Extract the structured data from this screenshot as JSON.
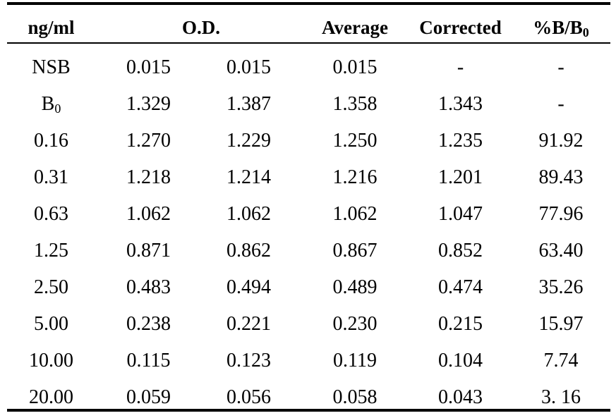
{
  "header": {
    "col0": "ng/ml",
    "col_od": "O.D.",
    "col3": "Average",
    "col4": "Corrected",
    "col5_main": "%B/B",
    "col5_sub": "0"
  },
  "rows": [
    {
      "c0_main": "NSB",
      "c0_sub": "",
      "c1": "0.015",
      "c2": "0.015",
      "c3": "0.015",
      "c4": "-",
      "c5": "-"
    },
    {
      "c0_main": "B",
      "c0_sub": "0",
      "c1": "1.329",
      "c2": "1.387",
      "c3": "1.358",
      "c4": "1.343",
      "c5": "-"
    },
    {
      "c0_main": "0.16",
      "c0_sub": "",
      "c1": "1.270",
      "c2": "1.229",
      "c3": "1.250",
      "c4": "1.235",
      "c5": "91.92"
    },
    {
      "c0_main": "0.31",
      "c0_sub": "",
      "c1": "1.218",
      "c2": "1.214",
      "c3": "1.216",
      "c4": "1.201",
      "c5": "89.43"
    },
    {
      "c0_main": "0.63",
      "c0_sub": "",
      "c1": "1.062",
      "c2": "1.062",
      "c3": "1.062",
      "c4": "1.047",
      "c5": "77.96"
    },
    {
      "c0_main": "1.25",
      "c0_sub": "",
      "c1": "0.871",
      "c2": "0.862",
      "c3": "0.867",
      "c4": "0.852",
      "c5": "63.40"
    },
    {
      "c0_main": "2.50",
      "c0_sub": "",
      "c1": "0.483",
      "c2": "0.494",
      "c3": "0.489",
      "c4": "0.474",
      "c5": "35.26"
    },
    {
      "c0_main": "5.00",
      "c0_sub": "",
      "c1": "0.238",
      "c2": "0.221",
      "c3": "0.230",
      "c4": "0.215",
      "c5": "15.97"
    },
    {
      "c0_main": "10.00",
      "c0_sub": "",
      "c1": "0.115",
      "c2": "0.123",
      "c3": "0.119",
      "c4": "0.104",
      "c5": "7.74"
    },
    {
      "c0_main": "20.00",
      "c0_sub": "",
      "c1": "0.059",
      "c2": "0.056",
      "c3": "0.058",
      "c4": "0.043",
      "c5": "3. 16"
    }
  ]
}
